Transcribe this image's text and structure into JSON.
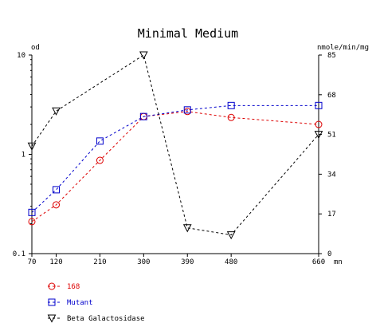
{
  "chart_data": {
    "type": "line",
    "title": "Minimal Medium",
    "x": [
      70,
      120,
      210,
      300,
      390,
      480,
      660
    ],
    "x_ticks": [
      "70",
      "120",
      "210",
      "300",
      "390",
      "480",
      "660"
    ],
    "x_unit": "mn",
    "xlim": [
      70,
      660
    ],
    "y_left": {
      "label": "od",
      "scale": "log",
      "ylim": [
        0.1,
        10
      ],
      "ticks": [
        0.1,
        1,
        10
      ],
      "tick_labels": [
        "0.1",
        "1",
        "10"
      ]
    },
    "y_right": {
      "label": "nmole/min/mg",
      "scale": "linear",
      "ylim": [
        0,
        85
      ],
      "ticks": [
        0,
        17,
        34,
        51,
        68,
        85
      ],
      "tick_labels": [
        "0",
        "17",
        "34",
        "51",
        "68",
        "85"
      ]
    },
    "grid": false,
    "legend_position": "bottom-left",
    "series": [
      {
        "name": "168",
        "axis": "left",
        "color": "#dd0000",
        "marker": "circle",
        "values": [
          0.21,
          0.31,
          0.87,
          2.4,
          2.7,
          2.35,
          2.0
        ]
      },
      {
        "name": "Mutant",
        "axis": "left",
        "color": "#0000cc",
        "marker": "square",
        "values": [
          0.26,
          0.44,
          1.36,
          2.4,
          2.8,
          3.1,
          3.1
        ]
      },
      {
        "name": "Beta Galactosidase",
        "axis": "right",
        "color": "#000000",
        "marker": "triangle-down",
        "values": [
          46,
          61,
          null,
          85,
          11,
          8,
          51
        ]
      }
    ]
  }
}
